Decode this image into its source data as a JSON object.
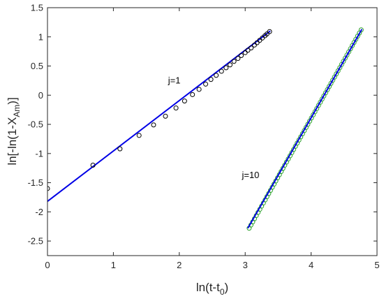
{
  "chart_data": {
    "type": "scatter",
    "title": "",
    "xlabel": {
      "main": "ln(t-t",
      "sub": "0",
      "tail": ")"
    },
    "ylabel": {
      "main": "ln[-ln(1-X",
      "sub": "Am",
      "tail": ")]"
    },
    "xlim": [
      0,
      5
    ],
    "ylim": [
      -2.75,
      1.5
    ],
    "xticks": [
      0,
      1,
      2,
      3,
      4,
      5
    ],
    "xtick_labels": [
      "0",
      "1",
      "2",
      "3",
      "4",
      "5"
    ],
    "yticks": [
      -2.5,
      -2,
      -1.5,
      -1,
      -0.5,
      0,
      0.5,
      1,
      1.5
    ],
    "ytick_labels": [
      "-2.5",
      "-2",
      "-1.5",
      "-1",
      "-0.5",
      "0",
      "0.5",
      "1",
      "1.5"
    ],
    "grid": false,
    "annotations": [
      {
        "text": "j=1",
        "x": 1.83,
        "y": 0.2
      },
      {
        "text": "j=10",
        "x": 2.95,
        "y": -1.42
      }
    ],
    "series": [
      {
        "marker_color": "#000000",
        "fit_color": "#0000e6",
        "x": [
          0,
          0.69,
          1.1,
          1.39,
          1.61,
          1.79,
          1.95,
          2.08,
          2.2,
          2.3,
          2.4,
          2.48,
          2.56,
          2.64,
          2.71,
          2.77,
          2.83,
          2.89,
          2.94,
          3.0,
          3.04,
          3.09,
          3.14,
          3.18,
          3.22,
          3.26,
          3.3,
          3.33,
          3.37
        ],
        "y": [
          -1.6,
          -1.2,
          -0.92,
          -0.69,
          -0.51,
          -0.36,
          -0.22,
          -0.1,
          0.01,
          0.1,
          0.19,
          0.27,
          0.34,
          0.41,
          0.47,
          0.52,
          0.58,
          0.63,
          0.68,
          0.73,
          0.77,
          0.81,
          0.86,
          0.9,
          0.94,
          0.98,
          1.02,
          1.05,
          1.09
        ],
        "fit": {
          "x": [
            0,
            3.38
          ],
          "y": [
            -1.82,
            1.1
          ]
        }
      },
      {
        "marker_color": "#2ca02c",
        "fit_color": "#0000e6",
        "x_start": 3.06,
        "x_end": 4.76,
        "n_points": 64,
        "y_start": -2.28,
        "y_end": 1.12,
        "fit": {
          "x": [
            3.04,
            4.77
          ],
          "y": [
            -2.28,
            1.13
          ]
        }
      }
    ]
  }
}
